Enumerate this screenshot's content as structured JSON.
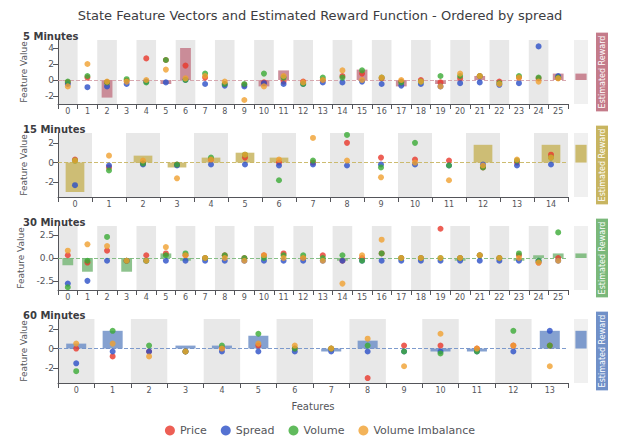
{
  "chart_data": {
    "type": "scatter",
    "title": "State Feature Vectors and Estimated Reward Function - Ordered by spread",
    "x_label": "Features",
    "legend": "bottom",
    "grid": false,
    "marker": "circle",
    "panels": [
      {
        "title": "5 Minutes",
        "y_label": "Feature Value",
        "categories": [
          "0",
          "1",
          "2",
          "3",
          "4",
          "5",
          "6",
          "7",
          "8",
          "9",
          "10",
          "11",
          "12",
          "13",
          "14",
          "15",
          "16",
          "17",
          "18",
          "19",
          "20",
          "21",
          "22",
          "23",
          "24",
          "25"
        ],
        "ylim": [
          -3,
          5
        ],
        "yticks": [
          -2,
          0,
          2,
          4
        ],
        "series": [
          {
            "name": "Price",
            "type": "scatter",
            "color": "#e8372a",
            "values": [
              -0.3,
              0.3,
              -0.3,
              -0.1,
              2.7,
              2.5,
              1.8,
              0.3,
              -0.5,
              -0.6,
              -0.3,
              -0.2,
              -0.2,
              0.0,
              0.5,
              0.8,
              0.2,
              -0.2,
              0.0,
              -0.3,
              0.2,
              0.5,
              -0.2,
              0.3,
              0.2,
              0.3
            ]
          },
          {
            "name": "Spread",
            "type": "scatter",
            "color": "#2b4fc7",
            "values": [
              -0.5,
              -0.9,
              -0.8,
              -0.5,
              -0.2,
              -0.3,
              0.0,
              -0.5,
              -0.7,
              -0.8,
              -0.4,
              -0.5,
              -0.5,
              -0.3,
              -0.3,
              -0.2,
              -0.5,
              -0.7,
              -0.5,
              -0.8,
              -0.4,
              -0.3,
              -0.6,
              -0.4,
              4.2,
              0.5
            ]
          },
          {
            "name": "Volume",
            "type": "scatter",
            "color": "#3aaa35",
            "values": [
              -0.2,
              0.5,
              -0.3,
              0.1,
              -0.3,
              2.5,
              0.0,
              0.8,
              -0.5,
              -0.5,
              0.8,
              0.3,
              -0.5,
              0.3,
              0.3,
              1.2,
              0.3,
              -0.3,
              -0.2,
              0.5,
              0.5,
              0.5,
              -0.4,
              0.5,
              0.3,
              0.3
            ]
          },
          {
            "name": "Volume Imbalance",
            "type": "scatter",
            "color": "#f0a030",
            "values": [
              -0.8,
              2.0,
              -0.2,
              -0.2,
              0.0,
              1.3,
              0.2,
              0.5,
              -0.2,
              -2.5,
              -0.8,
              0.5,
              -0.3,
              0.0,
              1.2,
              0.0,
              0.3,
              0.0,
              -0.2,
              -0.8,
              0.8,
              0.5,
              -0.5,
              0.3,
              -0.2,
              0.2
            ]
          },
          {
            "type": "bar",
            "color": "#c47b8a",
            "values": [
              -0.1,
              null,
              -2.2,
              null,
              null,
              -0.5,
              4.0,
              null,
              null,
              null,
              -0.8,
              1.2,
              null,
              null,
              null,
              1.3,
              null,
              -0.8,
              null,
              -0.5,
              null,
              0.5,
              null,
              null,
              null,
              0.8
            ]
          }
        ],
        "reward": {
          "label": "Estimated Reward",
          "value": 0.8,
          "color": "#c47b8a"
        },
        "reference_lines": [
          {
            "value": 0,
            "color": "#d4a0a8",
            "line_style": "dashed"
          }
        ]
      },
      {
        "title": "15 Minutes",
        "y_label": "Feature Value",
        "categories": [
          "0",
          "1",
          "2",
          "3",
          "4",
          "5",
          "6",
          "7",
          "8",
          "9",
          "10",
          "11",
          "12",
          "13",
          "14"
        ],
        "ylim": [
          -3.5,
          3
        ],
        "yticks": [
          -2,
          0,
          2
        ],
        "series": [
          {
            "name": "Price",
            "type": "scatter",
            "color": "#e8372a",
            "values": [
              0.3,
              -0.5,
              -0.1,
              -0.2,
              0.3,
              0.5,
              0.0,
              0.0,
              2.0,
              0.5,
              0.3,
              0.2,
              -0.5,
              0.0,
              0.8
            ]
          },
          {
            "name": "Spread",
            "type": "scatter",
            "color": "#2b4fc7",
            "values": [
              -2.3,
              -0.3,
              -0.2,
              -0.3,
              -0.2,
              -0.2,
              -0.3,
              -0.2,
              -0.3,
              -0.2,
              -0.2,
              -0.3,
              -0.2,
              -0.3,
              -0.2
            ]
          },
          {
            "name": "Volume",
            "type": "scatter",
            "color": "#3aaa35",
            "values": [
              0.2,
              -0.8,
              -0.1,
              -0.2,
              0.5,
              0.8,
              -1.8,
              0.2,
              2.8,
              -0.5,
              2.0,
              -0.3,
              -0.5,
              0.2,
              0.5
            ]
          },
          {
            "name": "Volume Imbalance",
            "type": "scatter",
            "color": "#f0a030",
            "values": [
              0.2,
              0.7,
              0.2,
              -1.6,
              0.3,
              0.8,
              0.3,
              2.5,
              0.2,
              -1.5,
              0.0,
              -1.8,
              -0.3,
              0.3,
              0.5
            ]
          },
          {
            "type": "bar",
            "color": "#c8b560",
            "values": [
              -3.0,
              null,
              0.7,
              -0.5,
              0.5,
              1.0,
              0.5,
              null,
              null,
              null,
              null,
              null,
              1.8,
              null,
              1.8
            ]
          }
        ],
        "reward": {
          "label": "Estimated Reward",
          "value": 1.8,
          "color": "#c8b560"
        },
        "reference_lines": [
          {
            "value": 0,
            "color": "#c8b560",
            "line_style": "dashed"
          }
        ]
      },
      {
        "title": "30 Minutes",
        "y_label": "Feature Value",
        "categories": [
          "0",
          "1",
          "2",
          "3",
          "4",
          "5",
          "6",
          "7",
          "8",
          "9",
          "10",
          "11",
          "12",
          "13",
          "14",
          "15",
          "16",
          "17",
          "18",
          "19",
          "20",
          "21",
          "22",
          "23",
          "24",
          "25"
        ],
        "ylim": [
          -3.5,
          3.5
        ],
        "yticks": [
          -2.5,
          {
            "value": 0.0,
            "label": "0.0"
          },
          2.5
        ],
        "series": [
          {
            "name": "Price",
            "type": "scatter",
            "color": "#e8372a",
            "values": [
              0.3,
              -0.5,
              0.8,
              -0.3,
              0.3,
              0.5,
              0.3,
              0.0,
              0.3,
              0.0,
              0.3,
              0.5,
              0.0,
              0.3,
              -0.3,
              0.0,
              0.5,
              0.0,
              0.0,
              3.2,
              0.0,
              0.3,
              0.0,
              0.3,
              -0.5,
              0.0
            ]
          },
          {
            "name": "Spread",
            "type": "scatter",
            "color": "#2b4fc7",
            "values": [
              -2.8,
              -2.5,
              -0.3,
              -0.3,
              -0.3,
              -0.3,
              -0.3,
              -0.3,
              -0.3,
              -0.3,
              -0.3,
              -0.3,
              -0.3,
              -0.3,
              -0.3,
              -0.3,
              -0.3,
              -0.3,
              -0.3,
              -0.3,
              -0.3,
              -0.3,
              -0.3,
              -0.3,
              -0.3,
              -0.3
            ]
          },
          {
            "name": "Volume",
            "type": "scatter",
            "color": "#3aaa35",
            "values": [
              -3.2,
              -0.3,
              2.3,
              -0.3,
              -0.3,
              0.3,
              0.5,
              0.0,
              0.3,
              0.0,
              0.0,
              0.3,
              0.3,
              0.0,
              0.3,
              -0.3,
              0.5,
              0.0,
              0.0,
              0.0,
              0.0,
              0.3,
              0.0,
              0.5,
              -0.3,
              2.8
            ]
          },
          {
            "name": "Volume Imbalance",
            "type": "scatter",
            "color": "#f0a030",
            "values": [
              0.8,
              1.5,
              1.3,
              -0.3,
              -0.3,
              1.2,
              0.3,
              0.0,
              0.0,
              -0.3,
              0.3,
              0.0,
              0.0,
              -0.3,
              -2.8,
              0.3,
              2.0,
              0.0,
              0.0,
              0.0,
              0.0,
              0.3,
              0.0,
              0.0,
              -0.5,
              -0.3
            ]
          },
          {
            "type": "bar",
            "color": "#7ab87a",
            "values": [
              -0.8,
              -1.5,
              null,
              -1.5,
              null,
              0.5,
              -0.3,
              null,
              null,
              null,
              null,
              null,
              null,
              null,
              -0.3,
              null,
              null,
              null,
              null,
              null,
              -0.3,
              null,
              null,
              -0.3,
              0.3,
              0.5
            ]
          }
        ],
        "reward": {
          "label": "Estimated Reward",
          "value": 0.5,
          "color": "#7ab87a"
        },
        "reference_lines": [
          {
            "value": 0,
            "color": "#7ab87a",
            "line_style": "dashed"
          }
        ]
      },
      {
        "title": "60 Minutes",
        "y_label": "Feature Value",
        "categories": [
          "0",
          "1",
          "2",
          "3",
          "4",
          "5",
          "6",
          "7",
          "8",
          "9",
          "10",
          "11",
          "12",
          "13"
        ],
        "ylim": [
          -3.5,
          3
        ],
        "yticks": [
          -2,
          0,
          2
        ],
        "series": [
          {
            "name": "Price",
            "type": "scatter",
            "color": "#e8372a",
            "values": [
              0.0,
              -0.8,
              -0.3,
              -0.3,
              0.0,
              0.3,
              0.0,
              0.0,
              -3.0,
              0.3,
              0.3,
              0.0,
              0.3,
              0.3
            ]
          },
          {
            "name": "Spread",
            "type": "scatter",
            "color": "#2b4fc7",
            "values": [
              -1.5,
              -0.3,
              -0.3,
              -0.3,
              -0.3,
              -0.3,
              -0.3,
              -0.3,
              -0.3,
              -0.3,
              -0.3,
              -0.3,
              -0.3,
              1.8
            ]
          },
          {
            "name": "Volume",
            "type": "scatter",
            "color": "#3aaa35",
            "values": [
              -2.3,
              1.8,
              0.3,
              -0.3,
              0.3,
              1.5,
              0.0,
              0.0,
              0.3,
              -0.3,
              -0.5,
              -0.3,
              1.8,
              0.3
            ]
          },
          {
            "name": "Volume Imbalance",
            "type": "scatter",
            "color": "#f0a030",
            "values": [
              0.5,
              0.5,
              -0.8,
              -0.3,
              0.0,
              0.5,
              0.3,
              0.0,
              1.0,
              -1.8,
              1.5,
              0.0,
              0.3,
              -1.8
            ]
          },
          {
            "type": "bar",
            "color": "#7090c8",
            "values": [
              0.5,
              1.8,
              null,
              0.3,
              0.3,
              1.3,
              null,
              -0.3,
              0.8,
              null,
              -0.3,
              -0.3,
              null,
              1.8
            ]
          }
        ],
        "reward": {
          "label": "Estimated Reward",
          "value": 1.8,
          "color": "#7090c8"
        },
        "reference_lines": [
          {
            "value": 0,
            "color": "#7090c8",
            "line_style": "dashed"
          }
        ]
      }
    ]
  }
}
